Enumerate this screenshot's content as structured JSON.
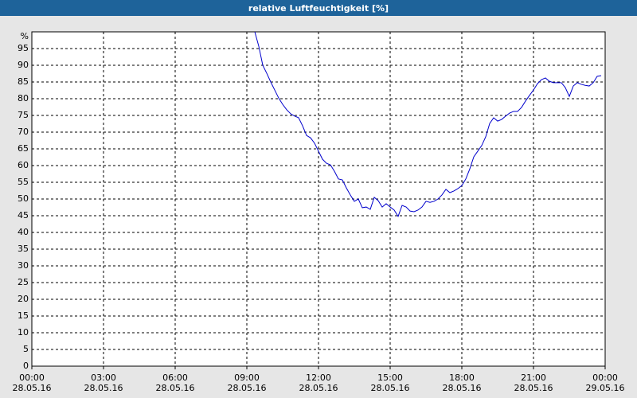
{
  "chart_data": {
    "type": "line",
    "title": "relative Luftfeuchtigkeit [%]",
    "x": [
      560,
      570,
      580,
      590,
      600,
      610,
      620,
      630,
      640,
      650,
      660,
      670,
      680,
      690,
      700,
      710,
      720,
      730,
      740,
      750,
      760,
      770,
      780,
      790,
      800,
      810,
      820,
      830,
      840,
      850,
      860,
      870,
      880,
      890,
      900,
      910,
      920,
      930,
      940,
      950,
      960,
      970,
      980,
      990,
      1000,
      1010,
      1020,
      1030,
      1040,
      1050,
      1060,
      1070,
      1080,
      1090,
      1100,
      1110,
      1120,
      1130,
      1140,
      1150,
      1160,
      1170,
      1180,
      1190,
      1200,
      1210,
      1220,
      1230,
      1240,
      1250,
      1260,
      1270,
      1280,
      1290,
      1300,
      1310,
      1320,
      1330,
      1340,
      1350,
      1360,
      1370,
      1380,
      1390,
      1400,
      1410,
      1420,
      1430
    ],
    "series": [
      {
        "color": "#0000cc",
        "values": [
          100,
          95.7,
          90,
          87.6,
          85,
          82.6,
          80.2,
          78.3,
          76.7,
          75.5,
          74.8,
          74.3,
          71.9,
          69,
          68.3,
          66.7,
          64.3,
          61.9,
          60.7,
          60.2,
          58.3,
          56,
          55.7,
          53.3,
          51.2,
          49.3,
          50,
          47.4,
          47.6,
          46.9,
          50.5,
          49.5,
          47.6,
          48.6,
          47.6,
          46.7,
          44.8,
          48.1,
          47.6,
          46.4,
          46.2,
          46.7,
          47.6,
          49.3,
          49,
          49.3,
          50,
          51.2,
          52.9,
          51.9,
          52.4,
          53.1,
          54,
          56,
          59,
          62.6,
          64.3,
          66,
          68.6,
          72.6,
          74.3,
          73.3,
          73.8,
          74.8,
          75.7,
          76.2,
          76.2,
          77.4,
          79.3,
          81,
          82.6,
          84.5,
          85.7,
          86.2,
          85.2,
          84.8,
          84.8,
          84.8,
          83.3,
          80.7,
          83.8,
          84.8,
          84.3,
          84,
          83.8,
          84.8,
          86.7,
          86.9
        ]
      }
    ],
    "xlim": [
      0,
      1440
    ],
    "xticks": [
      {
        "value": 0,
        "label": "00:00 28.05.16"
      },
      {
        "value": 180,
        "label": "03:00 28.05.16"
      },
      {
        "value": 360,
        "label": "06:00 28.05.16"
      },
      {
        "value": 540,
        "label": "09:00 28.05.16"
      },
      {
        "value": 720,
        "label": "12:00 28.05.16"
      },
      {
        "value": 900,
        "label": "15:00 28.05.16"
      },
      {
        "value": 1080,
        "label": "18:00 28.05.16"
      },
      {
        "value": 1260,
        "label": "21:00 28.05.16"
      },
      {
        "value": 1440,
        "label": "00:00 29.05.16"
      }
    ],
    "ylim": [
      0,
      100
    ],
    "yticks": [
      0,
      5,
      10,
      15,
      20,
      25,
      30,
      35,
      40,
      45,
      50,
      55,
      60,
      65,
      70,
      75,
      80,
      85,
      90,
      95,
      {
        "value": 100,
        "label": "%"
      }
    ],
    "grid": true
  }
}
